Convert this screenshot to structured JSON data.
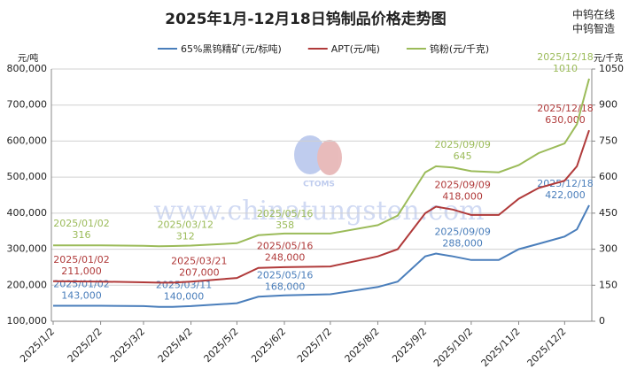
{
  "chart_data": {
    "type": "line",
    "title": "2025年1月-12月18日钨制品价格走势图",
    "brand": [
      "中钨在线",
      "中钨智造"
    ],
    "watermark": "www.chinatungsten.com",
    "logo_text": "CTOMS",
    "y_unit": "元/吨",
    "y2_unit": "元/千克",
    "x": [
      "2025/1/2",
      "2025/2/2",
      "2025/3/2",
      "2025/3/12",
      "2025/3/21",
      "2025/4/2",
      "2025/5/2",
      "2025/5/16",
      "2025/6/2",
      "2025/7/2",
      "2025/8/2",
      "2025/8/15",
      "2025/9/2",
      "2025/9/9",
      "2025/9/20",
      "2025/10/2",
      "2025/10/20",
      "2025/11/2",
      "2025/11/15",
      "2025/12/2",
      "2025/12/10",
      "2025/12/18"
    ],
    "xlim": [
      "2025/1/2",
      "2025/12/18"
    ],
    "xticks": [
      "2025/1/2",
      "2025/2/2",
      "2025/3/2",
      "2025/4/2",
      "2025/5/2",
      "2025/6/2",
      "2025/7/2",
      "2025/8/2",
      "2025/9/2",
      "2025/10/2",
      "2025/11/2",
      "2025/12/2"
    ],
    "ylim": [
      100000,
      800000
    ],
    "yticks": [
      {
        "value": 100000,
        "label": "100,000"
      },
      {
        "value": 200000,
        "label": "200,000"
      },
      {
        "value": 300000,
        "label": "300,000"
      },
      {
        "value": 400000,
        "label": "400,000"
      },
      {
        "value": 500000,
        "label": "500,000"
      },
      {
        "value": 600000,
        "label": "600,000"
      },
      {
        "value": 700000,
        "label": "700,000"
      },
      {
        "value": 800000,
        "label": "800,000"
      }
    ],
    "y2lim": [
      0,
      1050
    ],
    "y2ticks": [
      0,
      150,
      300,
      450,
      600,
      750,
      900,
      1050
    ],
    "grid": true,
    "legend": "top",
    "series": [
      {
        "name": "65%黑钨精矿(元/标吨)",
        "color": "#4a7ebb",
        "values": [
          143000,
          143000,
          142000,
          140000,
          140000,
          142000,
          150000,
          168000,
          172000,
          175000,
          195000,
          210000,
          280000,
          288000,
          280000,
          270000,
          270000,
          300000,
          315000,
          335000,
          355000,
          422000
        ],
        "annotations": [
          {
            "date": "2025/01/02",
            "value": "143,000"
          },
          {
            "date": "2025/03/11",
            "value": "140,000"
          },
          {
            "date": "2025/05/16",
            "value": "168,000"
          },
          {
            "date": "2025/09/09",
            "value": "288,000"
          },
          {
            "date": "2025/12/18",
            "value": "422,000"
          }
        ]
      },
      {
        "name": "APT(元/吨)",
        "color": "#b03a3a",
        "values": [
          211000,
          210000,
          208000,
          207000,
          207000,
          210000,
          220000,
          248000,
          250000,
          252000,
          280000,
          300000,
          400000,
          418000,
          410000,
          395000,
          395000,
          440000,
          470000,
          490000,
          530000,
          630000
        ],
        "annotations": [
          {
            "date": "2025/01/02",
            "value": "211,000"
          },
          {
            "date": "2025/03/21",
            "value": "207,000"
          },
          {
            "date": "2025/05/16",
            "value": "248,000"
          },
          {
            "date": "2025/09/09",
            "value": "418,000"
          },
          {
            "date": "2025/12/18",
            "value": "630,000"
          }
        ]
      },
      {
        "name": "钨粉(元/千克)",
        "color": "#9bbb59",
        "axis": "y2",
        "values": [
          316,
          316,
          314,
          312,
          313,
          315,
          325,
          358,
          365,
          365,
          400,
          440,
          620,
          645,
          640,
          625,
          620,
          650,
          700,
          740,
          820,
          1010
        ],
        "annotations": [
          {
            "date": "2025/01/02",
            "value": "316"
          },
          {
            "date": "2025/03/12",
            "value": "312"
          },
          {
            "date": "2025/05/16",
            "value": "358"
          },
          {
            "date": "2025/09/09",
            "value": "645"
          },
          {
            "date": "2025/12/18",
            "value": "1010"
          }
        ]
      }
    ]
  }
}
